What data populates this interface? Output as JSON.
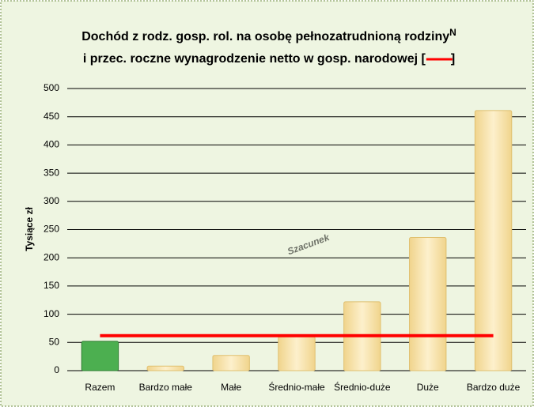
{
  "chart_data": {
    "type": "bar",
    "title": "Dochód z rodz. gosp. rol. na osobę pełnozatrudnioną rodziny",
    "title_superscript": "N",
    "title_line2": "i przec. roczne wynagrodzenie netto w gosp. narodowej [",
    "title_line2_end": "]",
    "y_label": "Tysiące zł",
    "watermark": "Szacunek",
    "categories": [
      "Razem",
      "Bardzo małe",
      "Małe",
      "Średnio-małe",
      "Średnio-duże",
      "Duże",
      "Bardzo duże"
    ],
    "values": [
      52,
      8,
      27,
      60,
      122,
      236,
      461
    ],
    "colors": [
      "#4caf50",
      "#f5dc9c",
      "#f5dc9c",
      "#f5dc9c",
      "#f5dc9c",
      "#f5dc9c",
      "#f5dc9c"
    ],
    "reference_line": {
      "value": 62,
      "color": "#ff0000"
    },
    "ylim": [
      0,
      500
    ],
    "yticks": [
      0,
      50,
      100,
      150,
      200,
      250,
      300,
      350,
      400,
      450,
      500
    ],
    "grid": true
  }
}
